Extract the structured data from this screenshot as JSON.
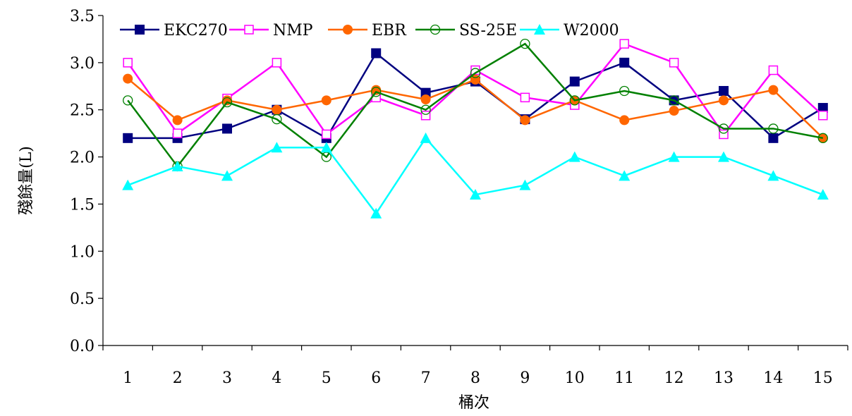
{
  "chart_data": {
    "type": "line",
    "title": "",
    "xlabel": "桶次",
    "ylabel": "殘餘量(L)",
    "x": [
      1,
      2,
      3,
      4,
      5,
      6,
      7,
      8,
      9,
      10,
      11,
      12,
      13,
      14,
      15
    ],
    "categories": [
      "1",
      "2",
      "3",
      "4",
      "5",
      "6",
      "7",
      "8",
      "9",
      "10",
      "11",
      "12",
      "13",
      "14",
      "15"
    ],
    "ylim": [
      0,
      3.5
    ],
    "yticks": [
      "0.0",
      "0.5",
      "1.0",
      "1.5",
      "2.0",
      "2.5",
      "3.0",
      "3.5"
    ],
    "grid": false,
    "legend_position": "top-left",
    "series": [
      {
        "name": "EKC270",
        "color": "#000080",
        "marker": "filled-square",
        "values": [
          2.2,
          2.2,
          2.3,
          2.5,
          2.2,
          3.1,
          2.68,
          2.8,
          2.4,
          2.8,
          3.0,
          2.6,
          2.7,
          2.2,
          2.52
        ]
      },
      {
        "name": "NMP",
        "color": "#ff00ff",
        "marker": "open-square",
        "values": [
          3.0,
          2.25,
          2.62,
          3.0,
          2.24,
          2.63,
          2.44,
          2.92,
          2.63,
          2.55,
          3.2,
          3.0,
          2.24,
          2.92,
          2.44
        ]
      },
      {
        "name": "EBR",
        "color": "#ff6600",
        "marker": "filled-circle",
        "values": [
          2.83,
          2.39,
          2.6,
          2.5,
          2.6,
          2.71,
          2.61,
          2.82,
          2.39,
          2.6,
          2.39,
          2.49,
          2.6,
          2.71,
          2.2
        ]
      },
      {
        "name": "SS-25E",
        "color": "#008000",
        "marker": "open-circle",
        "values": [
          2.6,
          1.9,
          2.58,
          2.4,
          2.0,
          2.69,
          2.5,
          2.89,
          3.2,
          2.6,
          2.7,
          2.6,
          2.3,
          2.3,
          2.2
        ]
      },
      {
        "name": "W2000",
        "color": "#00ffff",
        "marker": "filled-triangle",
        "values": [
          1.7,
          1.9,
          1.8,
          2.1,
          2.1,
          1.4,
          2.2,
          1.6,
          1.7,
          2.0,
          1.8,
          2.0,
          2.0,
          1.8,
          1.6
        ]
      }
    ]
  }
}
